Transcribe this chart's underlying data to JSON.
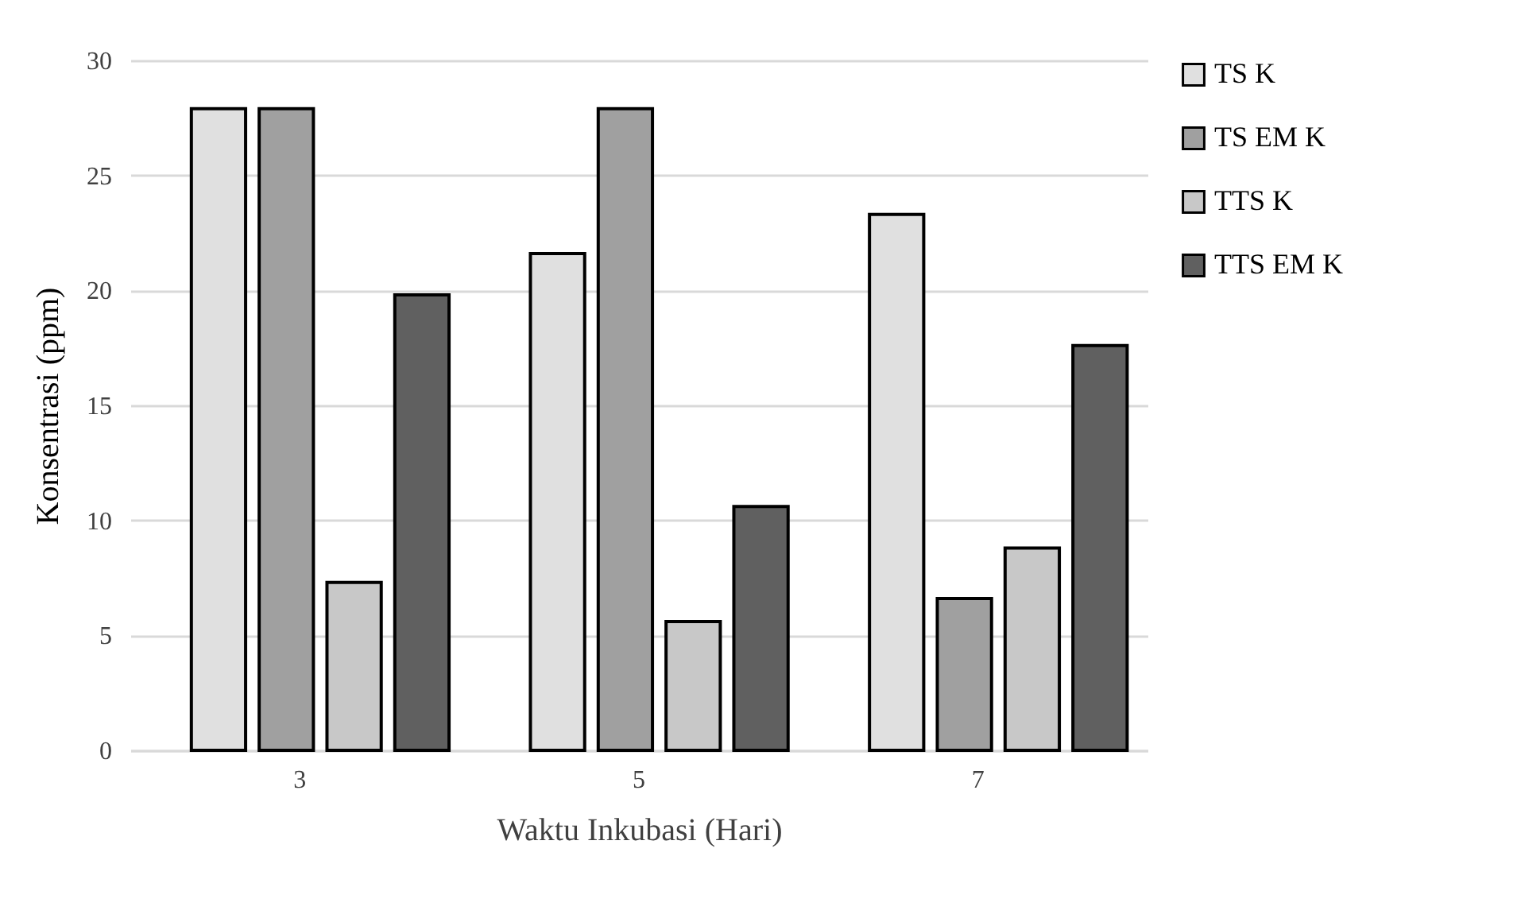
{
  "chart_data": {
    "type": "bar",
    "xlabel": "Waktu Inkubasi (Hari)",
    "ylabel": "Konsentrasi (ppm)",
    "categories": [
      "3",
      "5",
      "7"
    ],
    "series": [
      {
        "name": "TS K",
        "color": "#e0e0e0",
        "values": [
          27.9,
          21.6,
          23.3
        ]
      },
      {
        "name": "TS EM K",
        "color": "#a0a0a0",
        "values": [
          27.9,
          27.9,
          6.6
        ]
      },
      {
        "name": "TTS K",
        "color": "#c8c8c8",
        "values": [
          7.3,
          5.6,
          8.8
        ]
      },
      {
        "name": "TTS EM K",
        "color": "#606060",
        "values": [
          19.8,
          10.6,
          17.6
        ]
      }
    ],
    "ylim": [
      0,
      30
    ],
    "yticks": [
      0,
      5,
      10,
      15,
      20,
      25,
      30
    ],
    "grid": "y",
    "legend": "right"
  }
}
